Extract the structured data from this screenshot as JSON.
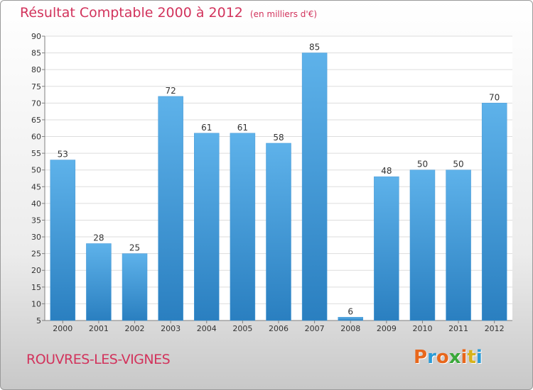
{
  "title": {
    "main": "Résultat Comptable 2000 à 2012",
    "sub": "(en milliers d'€)"
  },
  "commune": "ROUVRES-LES-VIGNES",
  "logo": {
    "text": "Proxiti",
    "letters": [
      "P",
      "r",
      "o",
      "x",
      "i",
      "t",
      "i"
    ],
    "colors": [
      "#e8671c",
      "#2a9bd6",
      "#e8671c",
      "#3aa83a",
      "#e8671c",
      "#d8b21a",
      "#2a9bd6"
    ]
  },
  "colors": {
    "title": "#d2335c",
    "bar_top": "#5eb2ea",
    "bar_bottom": "#2a7fc0",
    "grid": "#dddddd",
    "axis": "#7f7f7f"
  },
  "chart_data": {
    "type": "bar",
    "title": "Résultat Comptable 2000 à 2012",
    "subtitle": "(en milliers d'€)",
    "xlabel": "",
    "ylabel": "",
    "categories": [
      "2000",
      "2001",
      "2002",
      "2003",
      "2004",
      "2005",
      "2006",
      "2007",
      "2008",
      "2009",
      "2010",
      "2011",
      "2012"
    ],
    "values": [
      53,
      28,
      25,
      72,
      61,
      61,
      58,
      85,
      6,
      48,
      50,
      50,
      70
    ],
    "ylim": [
      5,
      90
    ],
    "yticks": [
      5,
      10,
      15,
      20,
      25,
      30,
      35,
      40,
      45,
      50,
      55,
      60,
      65,
      70,
      75,
      80,
      85,
      90
    ],
    "grid": true,
    "data_labels": true
  }
}
